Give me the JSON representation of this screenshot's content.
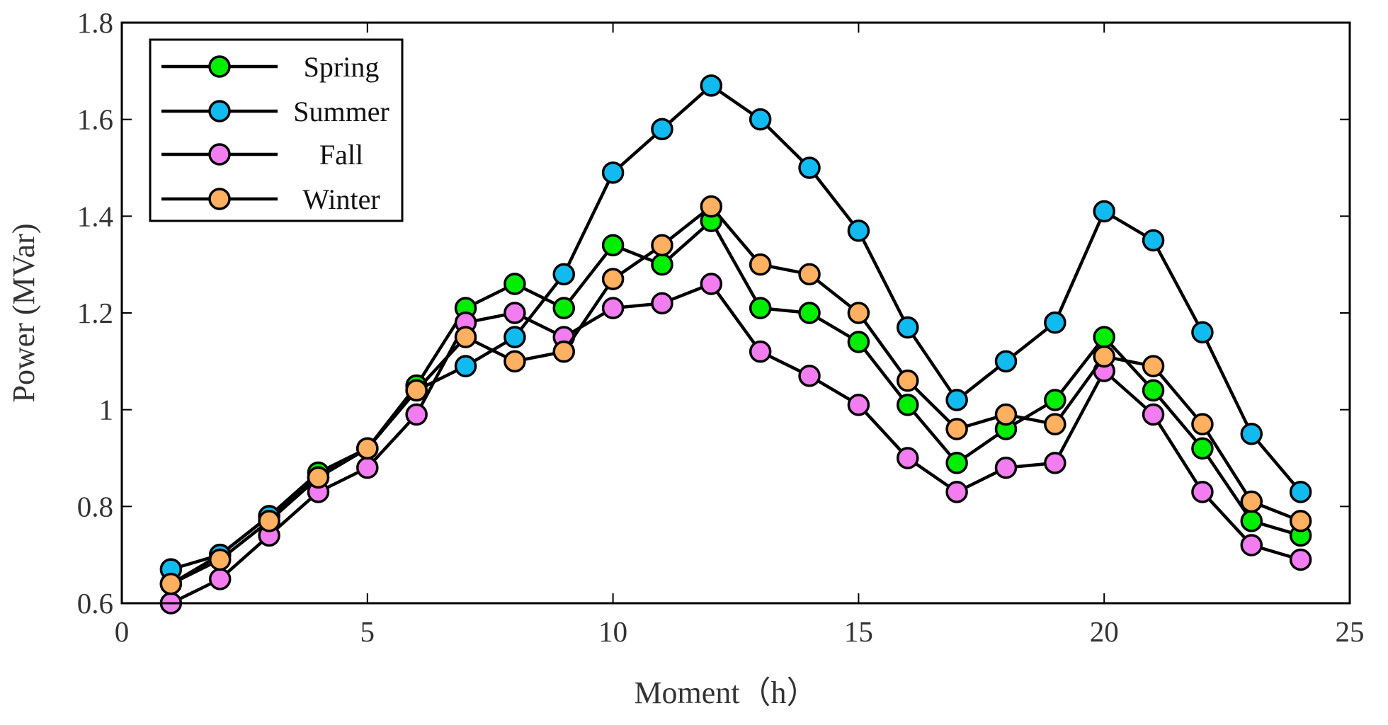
{
  "chart_data": {
    "type": "line",
    "title": "",
    "xlabel": "Moment（h）",
    "ylabel": "Power (MVar)",
    "xlim": [
      0,
      25
    ],
    "ylim": [
      0.6,
      1.8
    ],
    "x_ticks": [
      0,
      5,
      10,
      15,
      20,
      25
    ],
    "y_ticks": [
      0.6,
      0.8,
      1,
      1.2,
      1.4,
      1.6,
      1.8
    ],
    "x_tick_labels": [
      "0",
      "5",
      "10",
      "15",
      "20",
      "25"
    ],
    "y_tick_labels": [
      "0.6",
      "0.8",
      "1",
      "1.2",
      "1.4",
      "1.6",
      "1.8"
    ],
    "grid": false,
    "legend_position": "top-left",
    "x": [
      1,
      2,
      3,
      4,
      5,
      6,
      7,
      8,
      9,
      10,
      11,
      12,
      13,
      14,
      15,
      16,
      17,
      18,
      19,
      20,
      21,
      22,
      23,
      24
    ],
    "series": [
      {
        "name": "Spring",
        "color": "#00ee00",
        "values": [
          0.64,
          0.7,
          0.78,
          0.87,
          0.92,
          1.05,
          1.21,
          1.26,
          1.21,
          1.34,
          1.3,
          1.39,
          1.21,
          1.2,
          1.14,
          1.01,
          0.89,
          0.96,
          1.02,
          1.15,
          1.04,
          0.92,
          0.77,
          0.74
        ]
      },
      {
        "name": "Summer",
        "color": "#11bbf0",
        "values": [
          0.67,
          0.7,
          0.78,
          0.86,
          0.92,
          1.04,
          1.09,
          1.15,
          1.28,
          1.49,
          1.58,
          1.67,
          1.6,
          1.5,
          1.37,
          1.17,
          1.02,
          1.1,
          1.18,
          1.41,
          1.35,
          1.16,
          0.95,
          0.83
        ]
      },
      {
        "name": "Fall",
        "color": "#f27df0",
        "values": [
          0.6,
          0.65,
          0.74,
          0.83,
          0.88,
          0.99,
          1.18,
          1.2,
          1.15,
          1.21,
          1.22,
          1.26,
          1.12,
          1.07,
          1.01,
          0.9,
          0.83,
          0.88,
          0.89,
          1.08,
          0.99,
          0.83,
          0.72,
          0.69
        ]
      },
      {
        "name": "Winter",
        "color": "#ffb060",
        "values": [
          0.64,
          0.69,
          0.77,
          0.86,
          0.92,
          1.04,
          1.15,
          1.1,
          1.12,
          1.27,
          1.34,
          1.42,
          1.3,
          1.28,
          1.2,
          1.06,
          0.96,
          0.99,
          0.97,
          1.11,
          1.09,
          0.97,
          0.81,
          0.77
        ]
      }
    ]
  }
}
